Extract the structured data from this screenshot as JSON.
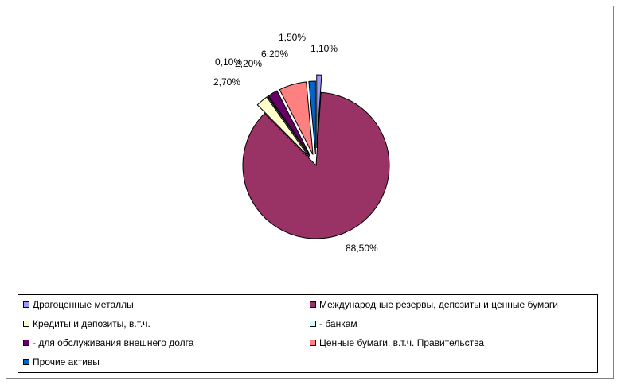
{
  "chart_data": {
    "type": "pie",
    "title": "",
    "unit": "%",
    "slices": [
      {
        "name": "Драгоценные металлы",
        "value": 1.1,
        "label": "1,10%",
        "color": "#9999ff"
      },
      {
        "name": "Международные резервы, депозиты и ценные бумаги",
        "value": 88.5,
        "label": "88,50%",
        "color": "#993366"
      },
      {
        "name": "Кредиты и депозиты, в.т.ч.",
        "value": 2.7,
        "label": "2,70%",
        "color": "#ffffcc"
      },
      {
        "name": "- банкам",
        "value": 0.1,
        "label": "0,10%",
        "color": "#ccffff"
      },
      {
        "name": "- для обслуживания внешнего долга",
        "value": 2.2,
        "label": "2,20%",
        "color": "#660066"
      },
      {
        "name": "Ценные бумаги, в.т.ч. Правительства",
        "value": 6.2,
        "label": "6,20%",
        "color": "#ff8080"
      },
      {
        "name": "Прочие активы",
        "value": 1.5,
        "label": "1,50%",
        "color": "#0066cc"
      }
    ],
    "legend_position": "bottom",
    "exploded": true
  },
  "legend": {
    "items": [
      {
        "label": "Драгоценные металлы",
        "color": "#9999ff"
      },
      {
        "label": "Международные резервы, депозиты и ценные бумаги",
        "color": "#993366"
      },
      {
        "label": "Кредиты и депозиты, в.т.ч.",
        "color": "#ffffcc"
      },
      {
        "label": "- банкам",
        "color": "#ccffff"
      },
      {
        "label": "- для обслуживания внешнего долга",
        "color": "#660066"
      },
      {
        "label": "Ценные бумаги, в.т.ч. Правительства",
        "color": "#ff8080"
      },
      {
        "label": "Прочие активы",
        "color": "#0066cc"
      }
    ]
  }
}
